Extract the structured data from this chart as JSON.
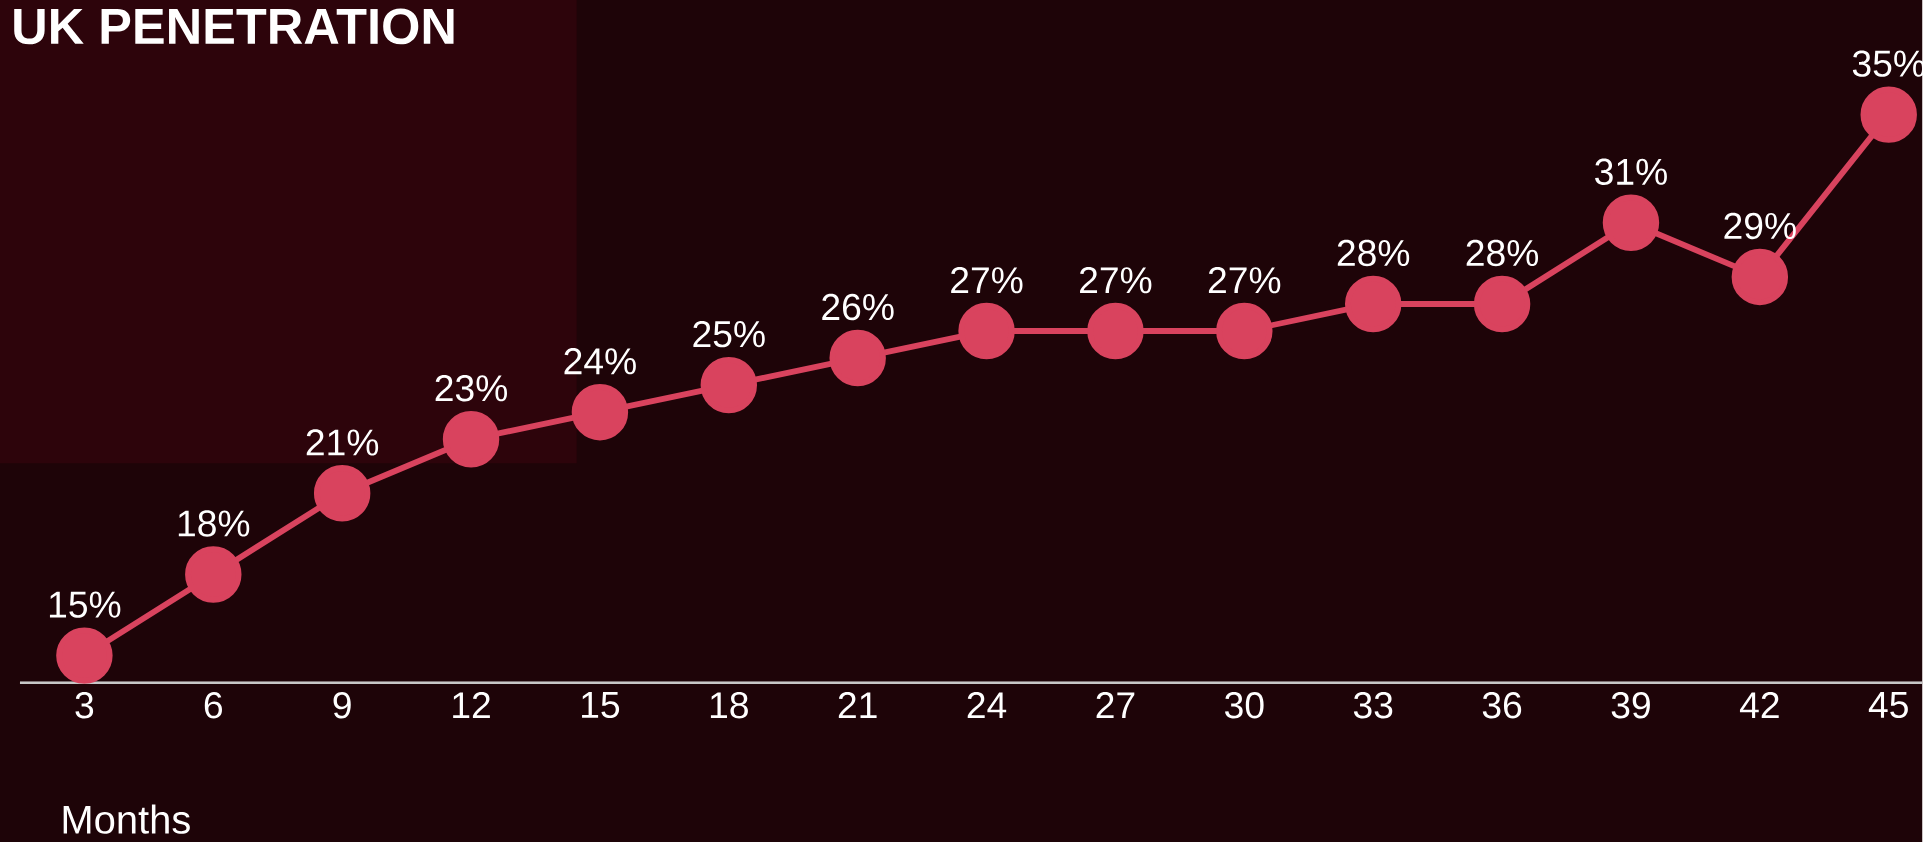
{
  "chart_data": {
    "type": "line",
    "title": "UK PENETRATION",
    "xlabel": "Months",
    "categories": [
      "3",
      "6",
      "9",
      "12",
      "15",
      "18",
      "21",
      "24",
      "27",
      "30",
      "33",
      "36",
      "39",
      "42",
      "45"
    ],
    "series": [
      {
        "color": "#d9435e",
        "values": [
          15,
          18,
          21,
          23,
          24,
          25,
          26,
          27,
          27,
          27,
          28,
          28,
          31,
          29,
          35
        ],
        "value_labels": [
          "15%",
          "18%",
          "21%",
          "23%",
          "24%",
          "25%",
          "26%",
          "27%",
          "27%",
          "27%",
          "28%",
          "28%",
          "31%",
          "29%",
          "35%"
        ]
      }
    ],
    "tick_labels": "x",
    "marker": "circle",
    "line_style": "solid"
  }
}
